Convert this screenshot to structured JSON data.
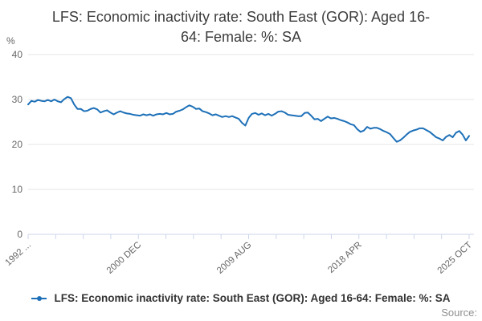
{
  "title": {
    "text": "LFS: Economic inactivity rate: South East (GOR): Aged 16-64: Female: %: SA",
    "lines": [
      "LFS: Economic inactivity rate: South East (GOR): Aged 16-",
      "64: Female: %: SA"
    ]
  },
  "y_axis": {
    "unit_label": "%",
    "tick_values": [
      0,
      10,
      20,
      30,
      40
    ],
    "min": 0,
    "max": 40
  },
  "x_axis": {
    "labels": [
      "1992 ...",
      "2000 DEC",
      "2009 AUG",
      "2018 APR",
      "2025 OCT"
    ],
    "tick_count": 17,
    "labeled_tick_indices": [
      0,
      4,
      8,
      12,
      16
    ]
  },
  "legend": {
    "marker": "line-with-dot",
    "label": "LFS: Economic inactivity rate: South East (GOR): Aged 16-64: Female: %: SA"
  },
  "footer": {
    "source_label": "Source:"
  },
  "colors": {
    "line": "#1d70b8",
    "grid": "#e6e6e6",
    "axis": "#ccd6eb",
    "tick_label": "#666666",
    "title": "#3c3c3c",
    "legend_text": "#333333",
    "source_text": "#8f8f8f"
  },
  "chart_data": {
    "type": "line",
    "title": "LFS: Economic inactivity rate: South East (GOR): Aged 16-64: Female: %: SA",
    "xlabel": "",
    "ylabel": "%",
    "ylim": [
      0,
      40
    ],
    "grid": true,
    "legend_position": "bottom",
    "series": [
      {
        "name": "LFS: Economic inactivity rate: South East (GOR): Aged 16-64: Female: %: SA",
        "x_start_year": 1992.25,
        "x_step_years": 0.25,
        "x_end_year": 2025.75,
        "values": [
          28.9,
          29.7,
          29.5,
          29.9,
          29.7,
          29.6,
          29.9,
          29.6,
          30.0,
          29.6,
          29.4,
          30.1,
          30.6,
          30.3,
          28.9,
          27.9,
          27.9,
          27.4,
          27.5,
          27.9,
          28.1,
          27.8,
          27.1,
          27.4,
          27.6,
          27.1,
          26.7,
          27.1,
          27.4,
          27.1,
          26.9,
          26.8,
          26.6,
          26.5,
          26.4,
          26.7,
          26.5,
          26.7,
          26.4,
          26.7,
          26.8,
          26.7,
          27.0,
          26.7,
          26.8,
          27.3,
          27.5,
          27.8,
          28.3,
          28.7,
          28.4,
          27.9,
          28.0,
          27.4,
          27.2,
          26.9,
          26.5,
          26.7,
          26.4,
          26.1,
          26.3,
          26.1,
          26.3,
          26.0,
          25.7,
          24.8,
          24.2,
          25.9,
          26.8,
          27.0,
          26.6,
          26.9,
          26.5,
          26.8,
          26.4,
          26.8,
          27.3,
          27.4,
          27.1,
          26.6,
          26.5,
          26.4,
          26.3,
          26.3,
          27.0,
          27.1,
          26.4,
          25.6,
          25.7,
          25.2,
          25.7,
          26.2,
          25.8,
          25.9,
          25.7,
          25.4,
          25.2,
          24.9,
          24.5,
          24.3,
          23.4,
          22.8,
          23.1,
          23.9,
          23.5,
          23.7,
          23.7,
          23.4,
          23.0,
          22.7,
          22.3,
          21.4,
          20.6,
          20.9,
          21.5,
          22.2,
          22.8,
          23.1,
          23.3,
          23.6,
          23.6,
          23.2,
          22.8,
          22.2,
          21.6,
          21.3,
          20.9,
          21.7,
          22.1,
          21.6,
          22.6,
          23.0,
          22.2,
          20.9,
          21.9
        ]
      }
    ]
  }
}
